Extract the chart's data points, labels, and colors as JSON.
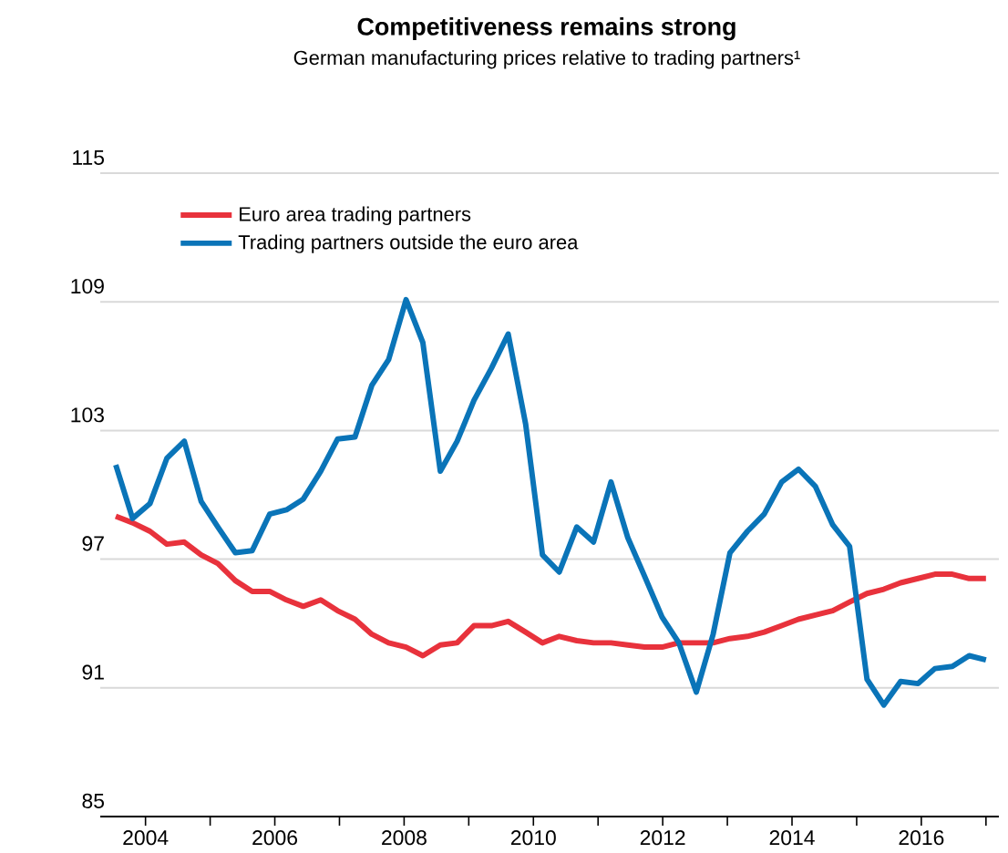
{
  "chart_data": {
    "type": "line",
    "title": "Competitiveness remains strong",
    "subtitle": "German manufacturing prices relative to trading partners¹",
    "x": [
      2003.54,
      2003.8,
      2004.07,
      2004.33,
      2004.6,
      2004.86,
      2005.12,
      2005.39,
      2005.65,
      2005.92,
      2006.18,
      2006.44,
      2006.71,
      2006.97,
      2007.24,
      2007.5,
      2007.76,
      2008.03,
      2008.29,
      2008.56,
      2008.82,
      2009.08,
      2009.35,
      2009.61,
      2009.88,
      2010.14,
      2010.4,
      2010.67,
      2010.93,
      2011.2,
      2011.46,
      2011.72,
      2011.99,
      2012.25,
      2012.52,
      2012.78,
      2013.04,
      2013.31,
      2013.57,
      2013.84,
      2014.1,
      2014.36,
      2014.63,
      2014.89,
      2015.16,
      2015.42,
      2015.68,
      2015.95,
      2016.21,
      2016.48,
      2016.74,
      2017.0
    ],
    "series": [
      {
        "name": "Euro area trading partners",
        "color": "#e8323c",
        "values": [
          99.0,
          98.7,
          98.3,
          97.7,
          97.8,
          97.2,
          96.8,
          96.0,
          95.5,
          95.5,
          95.1,
          94.8,
          95.1,
          94.6,
          94.2,
          93.5,
          93.1,
          92.9,
          92.5,
          93.0,
          93.1,
          93.9,
          93.9,
          94.1,
          93.6,
          93.1,
          93.4,
          93.2,
          93.1,
          93.1,
          93.0,
          92.9,
          92.9,
          93.1,
          93.1,
          93.1,
          93.3,
          93.4,
          93.6,
          93.9,
          94.2,
          94.4,
          94.6,
          95.0,
          95.4,
          95.6,
          95.9,
          96.1,
          96.3,
          96.3,
          96.1,
          96.1
        ]
      },
      {
        "name": "Trading partners outside the euro area",
        "color": "#0a74b8",
        "values": [
          101.4,
          98.9,
          99.6,
          101.7,
          102.5,
          99.7,
          98.5,
          97.3,
          97.4,
          99.1,
          99.3,
          99.8,
          101.1,
          102.6,
          102.7,
          105.1,
          106.3,
          109.1,
          107.1,
          101.1,
          102.5,
          104.4,
          105.9,
          107.5,
          103.3,
          97.2,
          96.4,
          98.5,
          97.8,
          100.6,
          98.0,
          96.2,
          94.3,
          93.1,
          90.8,
          93.5,
          97.3,
          98.3,
          99.1,
          100.6,
          101.2,
          100.4,
          98.6,
          97.6,
          91.4,
          90.2,
          91.3,
          91.2,
          91.9,
          92.0,
          92.5,
          92.3
        ]
      }
    ],
    "xlim": [
      2003.3,
      2017.2
    ],
    "ylim": [
      85,
      115
    ],
    "xticks": [
      2004,
      {
        "value": 2005,
        "label": null
      },
      2006,
      {
        "value": 2007,
        "label": null
      },
      2008,
      {
        "value": 2009,
        "label": null
      },
      2010,
      {
        "value": 2011,
        "label": null
      },
      2012,
      {
        "value": 2013,
        "label": null
      },
      2014,
      {
        "value": 2015,
        "label": null
      },
      2016,
      {
        "value": 2017,
        "label": null
      }
    ],
    "yticks": [
      85,
      91,
      97,
      103,
      109,
      115
    ],
    "grid": "y",
    "legend": "top left",
    "marker": "none",
    "line_style": "solid"
  }
}
